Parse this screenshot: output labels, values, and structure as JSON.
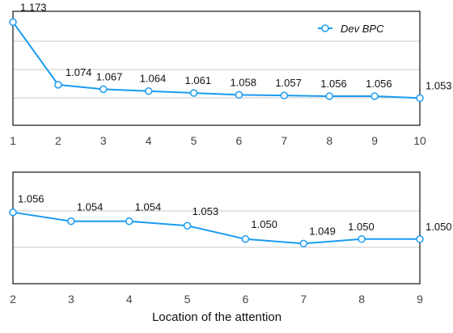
{
  "xlabel": "Location of the attention",
  "colors": {
    "line": "#1a9bf0",
    "grid": "#c8c8c8",
    "frame": "#111111"
  },
  "chart_data": [
    {
      "type": "line",
      "x": [
        1,
        2,
        3,
        4,
        5,
        6,
        7,
        8,
        9,
        10
      ],
      "xlim": [
        1,
        10
      ],
      "ylim": [
        1.01,
        1.19
      ],
      "grid": true,
      "legend": {
        "position": "top-right"
      },
      "series": [
        {
          "name": "Dev BPC",
          "values": [
            1.173,
            1.074,
            1.067,
            1.064,
            1.061,
            1.058,
            1.057,
            1.056,
            1.056,
            1.053
          ]
        }
      ],
      "data_labels": [
        "1.173",
        "1.074",
        "1.067",
        "1.064",
        "1.061",
        "1.058",
        "1.057",
        "1.056",
        "1.056",
        "1.053"
      ]
    },
    {
      "type": "line",
      "x": [
        2,
        3,
        4,
        5,
        6,
        7,
        8,
        9
      ],
      "xlim": [
        2,
        9
      ],
      "ylim": [
        1.04,
        1.065
      ],
      "grid": true,
      "series": [
        {
          "values": [
            1.056,
            1.054,
            1.054,
            1.053,
            1.05,
            1.049,
            1.05,
            1.05
          ]
        }
      ],
      "data_labels": [
        "1.056",
        "1.054",
        "1.054",
        "1.053",
        "1.050",
        "1.049",
        "1.050",
        "1.050"
      ]
    }
  ]
}
